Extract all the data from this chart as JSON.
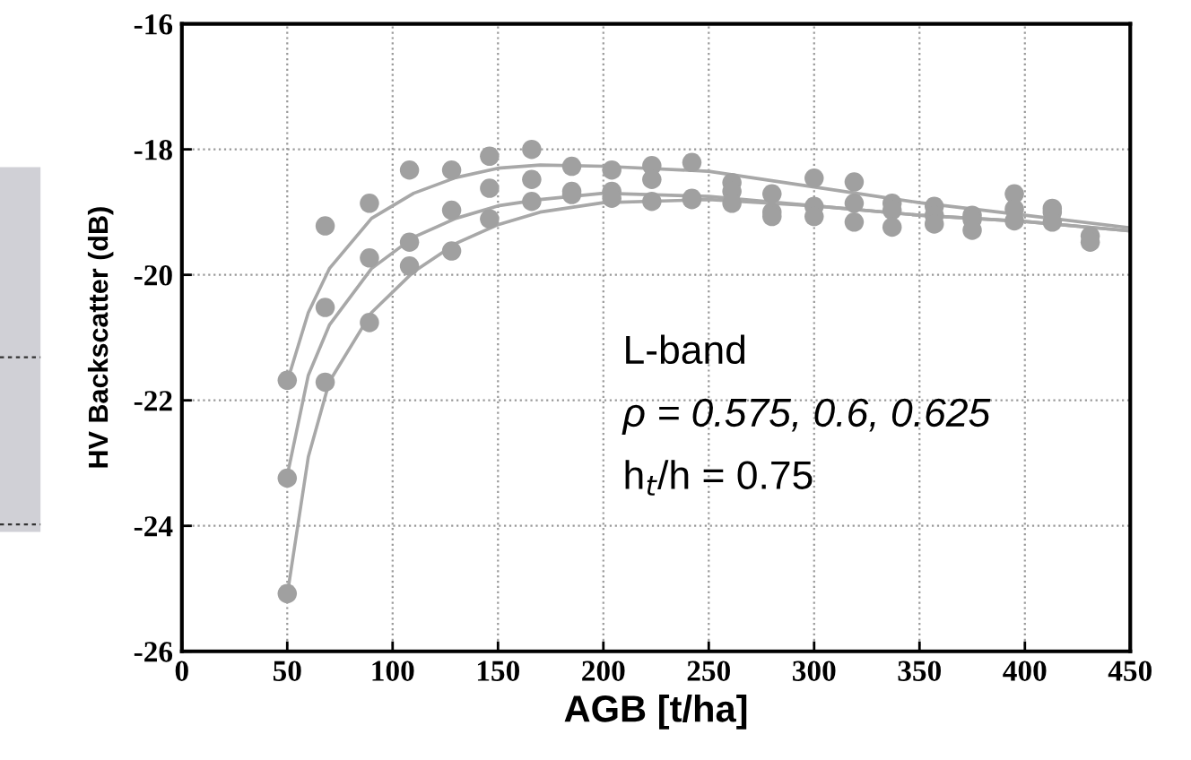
{
  "chart_data": {
    "type": "scatter",
    "xlabel": "AGB [t/ha]",
    "ylabel": "HV Backscatter (dB)",
    "xlim": [
      0,
      450
    ],
    "ylim": [
      -26,
      -16
    ],
    "xticks": [
      0,
      50,
      100,
      150,
      200,
      250,
      300,
      350,
      400,
      450
    ],
    "yticks": [
      -26,
      -24,
      -22,
      -20,
      -18,
      -16
    ],
    "grid": true,
    "marker": "circle",
    "series": [
      {
        "color": "#a0a0a0",
        "x": [
          50,
          50,
          50,
          68,
          68,
          68,
          89,
          89,
          89,
          108,
          108,
          108,
          128,
          128,
          128,
          146,
          146,
          146,
          166,
          166,
          166,
          185,
          185,
          185,
          204,
          204,
          204,
          223,
          223,
          223,
          242,
          242,
          242,
          261,
          261,
          261,
          280,
          280,
          280,
          300,
          300,
          300,
          319,
          319,
          319,
          337,
          337,
          337,
          357,
          357,
          357,
          375,
          375,
          375,
          395,
          395,
          395,
          413,
          413,
          413,
          431,
          431
        ],
        "values": [
          -21.68,
          -23.24,
          -25.08,
          -19.22,
          -20.52,
          -21.71,
          -18.86,
          -19.73,
          -20.76,
          -18.33,
          -19.48,
          -19.86,
          -18.33,
          -18.97,
          -19.62,
          -18.11,
          -18.62,
          -19.11,
          -18.0,
          -18.48,
          -18.83,
          -18.27,
          -18.67,
          -18.72,
          -18.33,
          -18.67,
          -18.78,
          -18.26,
          -18.48,
          -18.83,
          -18.21,
          -18.78,
          -18.8,
          -18.53,
          -18.67,
          -18.86,
          -18.71,
          -19.0,
          -19.07,
          -18.46,
          -18.91,
          -19.07,
          -18.52,
          -18.86,
          -19.16,
          -18.86,
          -18.97,
          -19.24,
          -18.91,
          -19.05,
          -19.19,
          -19.05,
          -19.12,
          -19.29,
          -18.71,
          -18.95,
          -19.14,
          -18.94,
          -19.0,
          -19.16,
          -19.38,
          -19.48
        ]
      },
      {
        "type": "line",
        "color": "#a8a8a8",
        "marker": "none",
        "x": [
          50,
          60,
          70,
          90,
          110,
          130,
          150,
          170,
          200,
          250,
          300,
          350,
          400,
          450
        ],
        "values": [
          -21.7,
          -20.6,
          -19.9,
          -19.1,
          -18.7,
          -18.45,
          -18.3,
          -18.25,
          -18.27,
          -18.35,
          -18.6,
          -18.85,
          -19.05,
          -19.25
        ]
      },
      {
        "type": "line",
        "color": "#a8a8a8",
        "marker": "none",
        "x": [
          50,
          60,
          70,
          90,
          110,
          130,
          150,
          170,
          200,
          250,
          300,
          350,
          400,
          450
        ],
        "values": [
          -23.2,
          -21.6,
          -20.8,
          -19.9,
          -19.4,
          -19.1,
          -18.9,
          -18.8,
          -18.7,
          -18.75,
          -18.9,
          -19.05,
          -19.15,
          -19.3
        ]
      },
      {
        "type": "line",
        "color": "#a8a8a8",
        "marker": "none",
        "x": [
          50,
          60,
          70,
          90,
          110,
          130,
          150,
          170,
          200,
          250,
          300,
          350,
          400,
          450
        ],
        "values": [
          -25.1,
          -22.9,
          -21.7,
          -20.6,
          -19.95,
          -19.5,
          -19.2,
          -19.0,
          -18.85,
          -18.8,
          -18.9,
          -19.05,
          -19.15,
          -19.3
        ]
      }
    ],
    "annotations": [
      "L-band",
      "ρ = 0.575, 0.6, 0.625",
      "h$_{t}$/h = 0.75"
    ]
  }
}
